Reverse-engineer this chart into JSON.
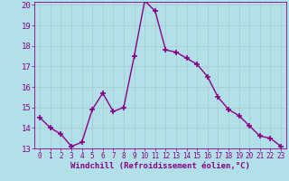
{
  "x": [
    0,
    1,
    2,
    3,
    4,
    5,
    6,
    7,
    8,
    9,
    10,
    11,
    12,
    13,
    14,
    15,
    16,
    17,
    18,
    19,
    20,
    21,
    22,
    23
  ],
  "y": [
    14.5,
    14.0,
    13.7,
    13.1,
    13.3,
    14.9,
    15.7,
    14.8,
    15.0,
    17.5,
    20.2,
    19.7,
    17.8,
    17.7,
    17.4,
    17.1,
    16.5,
    15.5,
    14.9,
    14.6,
    14.1,
    13.6,
    13.5,
    13.1
  ],
  "xlabel": "Windchill (Refroidissement éolien,°C)",
  "ylim": [
    13,
    20
  ],
  "xlim": [
    -0.5,
    23.5
  ],
  "yticks": [
    13,
    14,
    15,
    16,
    17,
    18,
    19,
    20
  ],
  "xticks": [
    0,
    1,
    2,
    3,
    4,
    5,
    6,
    7,
    8,
    9,
    10,
    11,
    12,
    13,
    14,
    15,
    16,
    17,
    18,
    19,
    20,
    21,
    22,
    23
  ],
  "line_color": "#880088",
  "marker": "+",
  "marker_size": 4,
  "bg_color": "#b2e0e8",
  "grid_color": "#aacccc",
  "xlabel_color": "#880088",
  "tick_color": "#880088",
  "xlabel_fontsize": 6.5,
  "ytick_fontsize": 6.5,
  "xtick_fontsize": 5.5,
  "linewidth": 1.0
}
